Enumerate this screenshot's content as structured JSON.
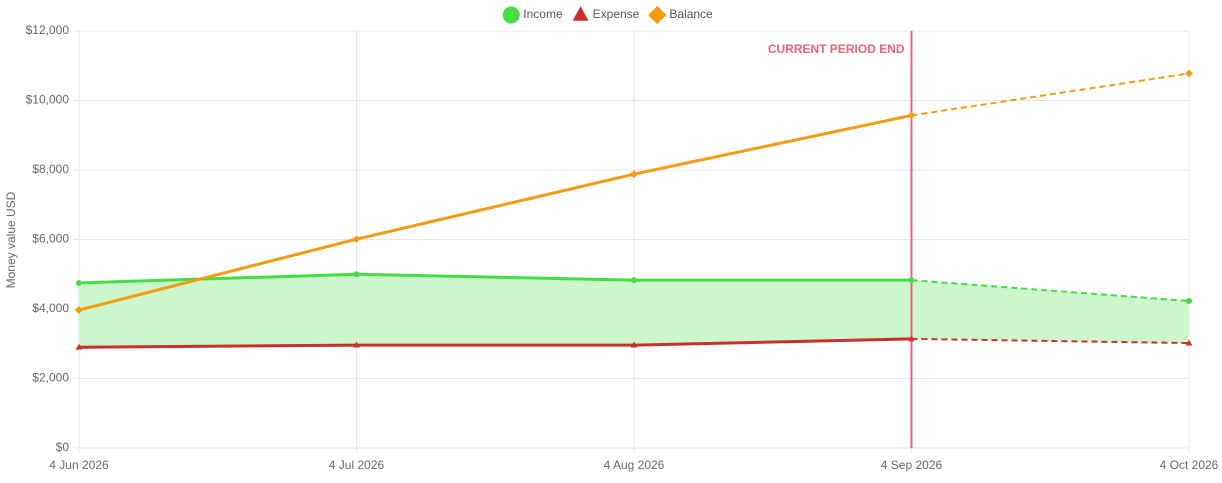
{
  "chart_data": {
    "type": "line",
    "y_label": "Money value USD",
    "x": [
      "4 Jun 2026",
      "4 Jul 2026",
      "4 Aug 2026",
      "4 Sep 2026",
      "4 Oct 2026"
    ],
    "series": [
      {
        "name": "Income",
        "color": "#44dd44",
        "marker": "circle",
        "values": [
          4750,
          5000,
          4830,
          4830,
          4230
        ]
      },
      {
        "name": "Expense",
        "color": "#c9302c",
        "marker": "triangle",
        "values": [
          2900,
          2960,
          2960,
          3140,
          3020
        ]
      },
      {
        "name": "Balance",
        "color": "#f39c12",
        "marker": "diamond",
        "values": [
          3970,
          6010,
          7880,
          9570,
          10780
        ]
      }
    ],
    "fill_between": {
      "color": "#ccf7cc"
    },
    "annotation": {
      "text": "CURRENT PERIOD END",
      "at": "4 Sep 2026",
      "color": "#e8607e"
    },
    "ylim": [
      0,
      12000
    ],
    "yticks": [
      {
        "value": 0,
        "label": "$0"
      },
      {
        "value": 2000,
        "label": "$2,000"
      },
      {
        "value": 4000,
        "label": "$4,000"
      },
      {
        "value": 6000,
        "label": "$6,000"
      },
      {
        "value": 8000,
        "label": "$8,000"
      },
      {
        "value": 10000,
        "label": "$10,000"
      },
      {
        "value": 12000,
        "label": "$12,000"
      }
    ],
    "grid": true,
    "legend": "top"
  }
}
